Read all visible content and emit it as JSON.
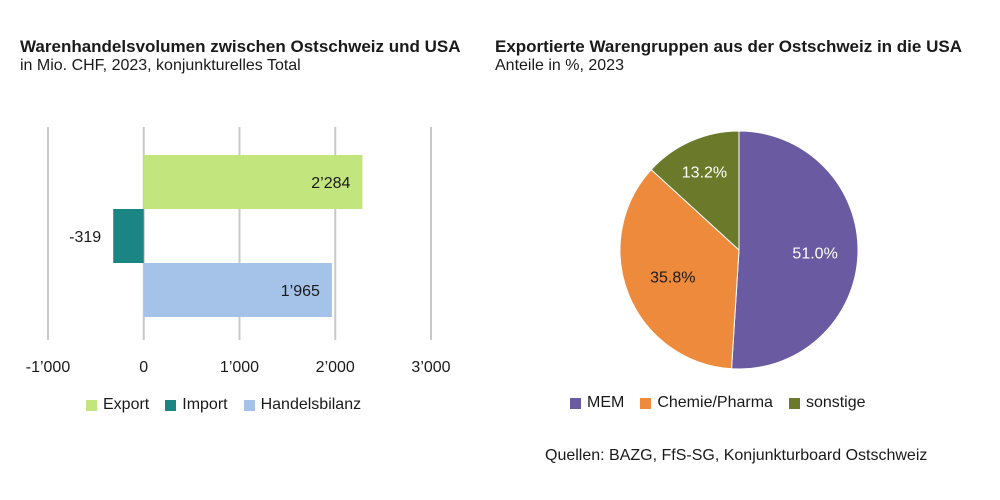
{
  "left": {
    "title": "Warenhandelsvolumen zwischen Ostschweiz und USA",
    "subtitle": "in Mio. CHF, 2023, konjunkturelles Total"
  },
  "right": {
    "title": "Exportierte Warengruppen aus der Ostschweiz in die USA",
    "subtitle": "Anteile in %, 2023"
  },
  "source": "Quellen: BAZG, FfS-SG, Konjunkturboard Ostschweiz",
  "chart_data": [
    {
      "type": "bar",
      "orientation": "horizontal",
      "title": "Warenhandelsvolumen zwischen Ostschweiz und USA",
      "subtitle": "in Mio. CHF, 2023, konjunkturelles Total",
      "xlim": [
        -1000,
        3000
      ],
      "xticks": [
        -1000,
        0,
        1000,
        2000,
        3000
      ],
      "xtick_labels": [
        "-1’000",
        "0",
        "1’000",
        "2’000",
        "3’000"
      ],
      "grid": true,
      "legend_position": "bottom",
      "series": [
        {
          "name": "Export",
          "value": 2284,
          "label": "2’284",
          "color": "#c2e57d"
        },
        {
          "name": "Import",
          "value": -319,
          "label": "-319",
          "color": "#1b8584"
        },
        {
          "name": "Handelsbilanz",
          "value": 1965,
          "label": "1’965",
          "color": "#a5c2e8"
        }
      ]
    },
    {
      "type": "pie",
      "title": "Exportierte Warengruppen aus der Ostschweiz in die USA",
      "subtitle": "Anteile in %, 2023",
      "legend_position": "bottom",
      "slices": [
        {
          "name": "MEM",
          "value": 51.0,
          "label": "51.0%",
          "color": "#6a5aa2",
          "label_color": "#ffffff"
        },
        {
          "name": "Chemie/Pharma",
          "value": 35.8,
          "label": "35.8%",
          "color": "#ee8a3b",
          "label_color": "#1a1a1a"
        },
        {
          "name": "sonstige",
          "value": 13.2,
          "label": "13.2%",
          "color": "#6b7a2a",
          "label_color": "#ffffff"
        }
      ]
    }
  ]
}
